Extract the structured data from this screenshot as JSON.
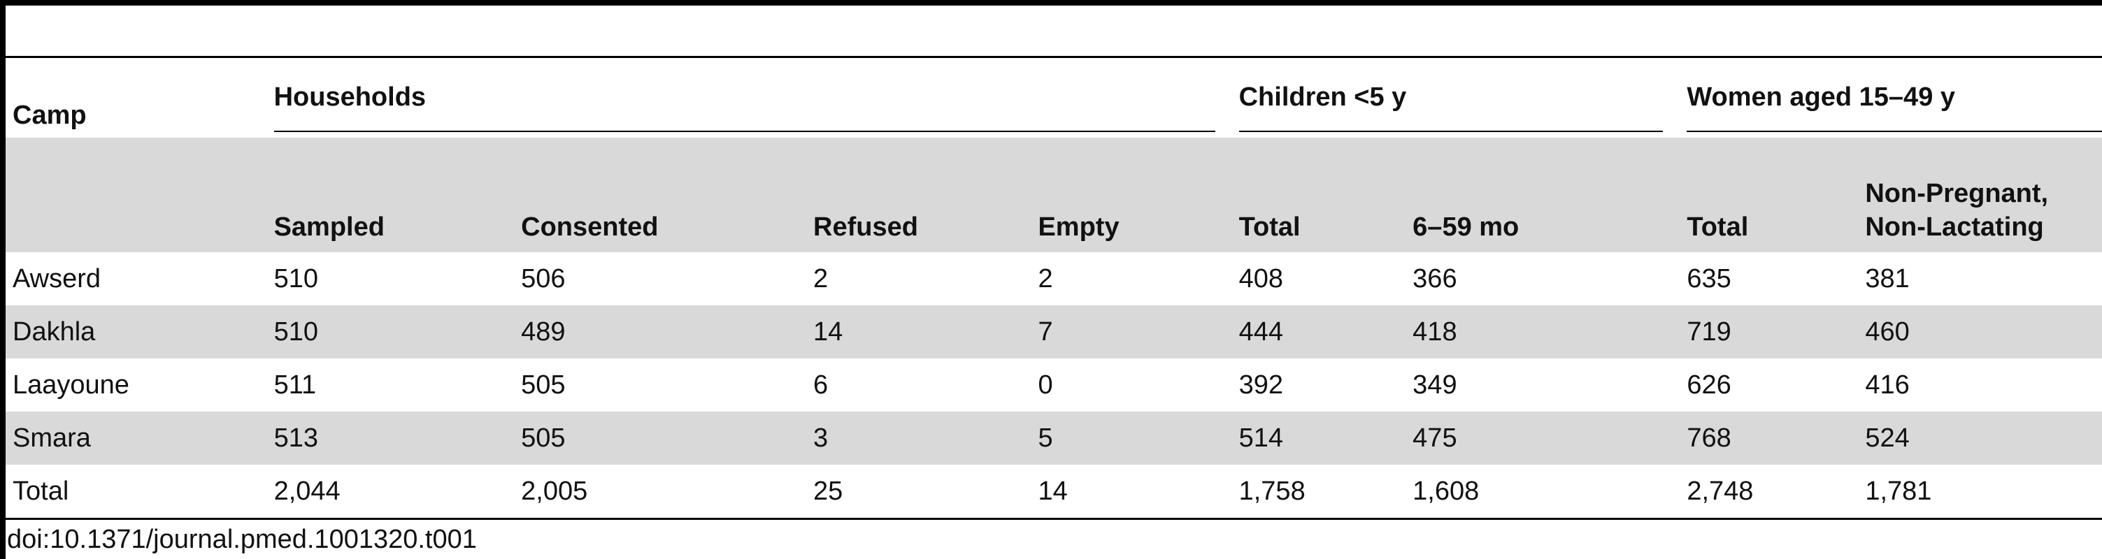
{
  "table": {
    "group_headers": {
      "camp": "Camp",
      "households": "Households",
      "children": "Children <5 y",
      "women": "Women aged 15–49 y"
    },
    "sub_headers": {
      "hh_sampled": "Sampled",
      "hh_consented": "Consented",
      "hh_refused": "Refused",
      "hh_empty": "Empty",
      "ch_total": "Total",
      "ch_6_59": "6–59 mo",
      "wo_total": "Total",
      "wo_npnl": "Non-Pregnant, Non-Lactating"
    },
    "rows": [
      {
        "camp": "Awserd",
        "sampled": "510",
        "consented": "506",
        "refused": "2",
        "empty": "2",
        "ch_total": "408",
        "ch_6_59": "366",
        "wo_total": "635",
        "wo_npnl": "381"
      },
      {
        "camp": "Dakhla",
        "sampled": "510",
        "consented": "489",
        "refused": "14",
        "empty": "7",
        "ch_total": "444",
        "ch_6_59": "418",
        "wo_total": "719",
        "wo_npnl": "460"
      },
      {
        "camp": "Laayoune",
        "sampled": "511",
        "consented": "505",
        "refused": "6",
        "empty": "0",
        "ch_total": "392",
        "ch_6_59": "349",
        "wo_total": "626",
        "wo_npnl": "416"
      },
      {
        "camp": "Smara",
        "sampled": "513",
        "consented": "505",
        "refused": "3",
        "empty": "5",
        "ch_total": "514",
        "ch_6_59": "475",
        "wo_total": "768",
        "wo_npnl": "524"
      },
      {
        "camp": "Total",
        "sampled": "2,044",
        "consented": "2,005",
        "refused": "25",
        "empty": "14",
        "ch_total": "1,758",
        "ch_6_59": "1,608",
        "wo_total": "2,748",
        "wo_npnl": "1,781"
      }
    ]
  },
  "caption": "doi:10.1371/journal.pmed.1001320.t001"
}
